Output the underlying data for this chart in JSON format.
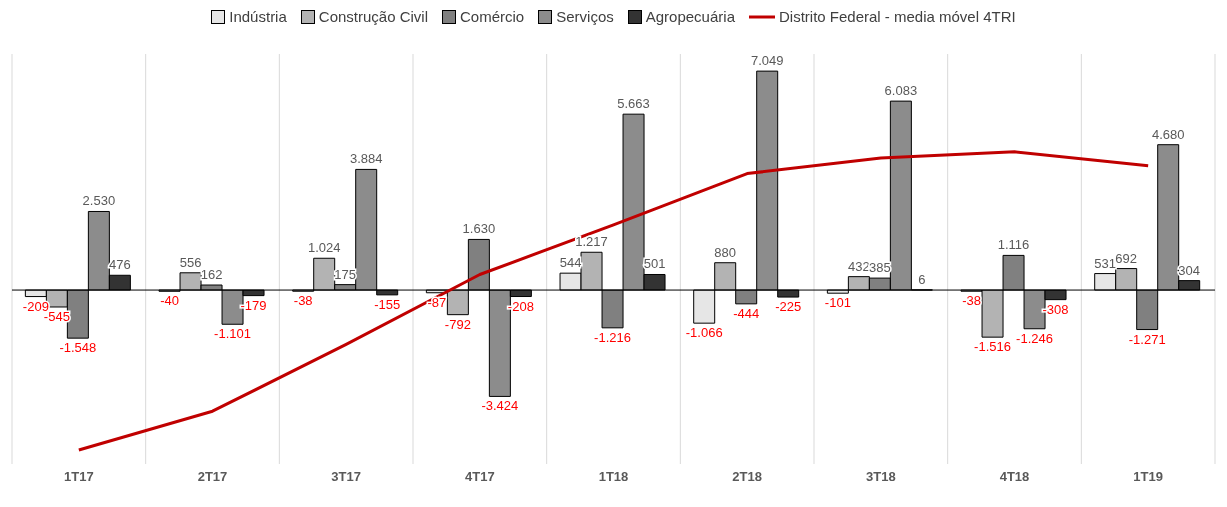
{
  "chart_data": {
    "type": "bar",
    "categories": [
      "1T17",
      "2T17",
      "3T17",
      "4T17",
      "1T18",
      "2T18",
      "3T18",
      "4T18",
      "1T19"
    ],
    "series": [
      {
        "name": "Indústria",
        "color": "#e6e6e6",
        "values": [
          -209,
          -40,
          -38,
          -87,
          544,
          -1066,
          -101,
          -38,
          531
        ],
        "value_labels": [
          "-209",
          "-40",
          "-38",
          "-87",
          "544",
          "-1.066",
          "-101",
          "-38",
          "531"
        ]
      },
      {
        "name": "Construção Civil",
        "color": "#b3b3b3",
        "values": [
          -545,
          556,
          1024,
          -792,
          1217,
          880,
          432,
          -1516,
          692
        ],
        "value_labels": [
          "-545",
          "556",
          "1.024",
          "-792",
          "1.217",
          "880",
          "432",
          "-1.516",
          "692"
        ]
      },
      {
        "name": "Comércio",
        "color": "#808080",
        "values": [
          -1548,
          162,
          175,
          1630,
          -1216,
          -444,
          385,
          1116,
          -1271
        ],
        "value_labels": [
          "-1.548",
          "162",
          "175",
          "1.630",
          "-1.216",
          "-444",
          "385",
          "1.116",
          "-1.271"
        ]
      },
      {
        "name": "Serviços",
        "color": "#8c8c8c",
        "values": [
          2530,
          -1101,
          3884,
          -3424,
          5663,
          7049,
          6083,
          -1246,
          4680
        ],
        "value_labels": [
          "2.530",
          "-1.101",
          "3.884",
          "-3.424",
          "5.663",
          "7.049",
          "6.083",
          "-1.246",
          "4.680"
        ]
      },
      {
        "name": "Agropecuária",
        "color": "#333333",
        "values": [
          476,
          -179,
          -155,
          -208,
          501,
          -225,
          6,
          -308,
          304
        ],
        "value_labels": [
          "476",
          "-179",
          "-155",
          "-208",
          "501",
          "-225",
          "6",
          "-308",
          "304"
        ]
      },
      {
        "name": "Distrito Federal - media móvel 4TRI",
        "type": "line",
        "color": "#c00000",
        "values": [
          -5150,
          -3900,
          -1750,
          500,
          2100,
          3750,
          4250,
          4450,
          4000
        ]
      }
    ],
    "ylim": [
      -5600,
      7600
    ],
    "tick_labels": "x",
    "grid": "x",
    "legend": "top",
    "marker": "none"
  }
}
